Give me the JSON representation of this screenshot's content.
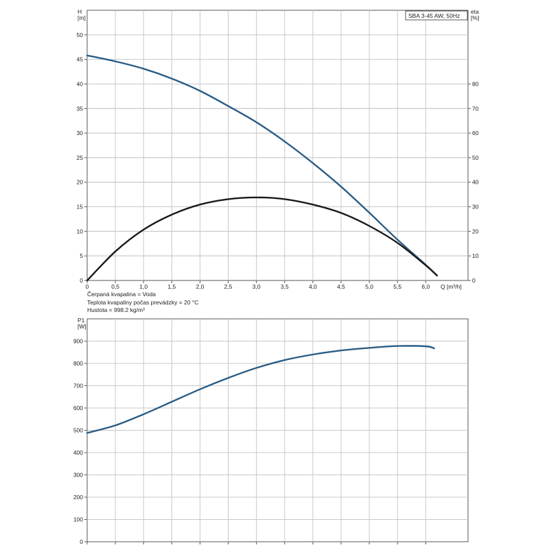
{
  "fluid_info": [
    "Čerpaná kvapalina = Voda",
    "Teplota kvapaliny počas prevádzky = 20 °C",
    "Hustota = 998.2 kg/m³"
  ],
  "chart_data": [
    {
      "type": "line",
      "title": "SBA 3-45 AW, 50Hz",
      "xlabel": "Q [m³/h]",
      "ylabel": "H\n[m]",
      "y2label": "eta\n[%]",
      "xlim": [
        0,
        6.75
      ],
      "xticks": [
        0,
        0.5,
        1.0,
        1.5,
        2.0,
        2.5,
        3.0,
        3.5,
        4.0,
        4.5,
        5.0,
        5.5,
        6.0
      ],
      "xtick_labels": [
        "0",
        "0,5",
        "1,0",
        "1,5",
        "2,0",
        "2,5",
        "3,0",
        "3,5",
        "4,0",
        "4,5",
        "5,0",
        "5,5",
        "6,0"
      ],
      "ylim": [
        0,
        55
      ],
      "yticks": [
        0,
        5,
        10,
        15,
        20,
        25,
        30,
        35,
        40,
        45,
        50
      ],
      "y2lim": [
        0,
        110
      ],
      "y2ticks": [
        0,
        10,
        20,
        30,
        40,
        50,
        60,
        70,
        80
      ],
      "grid": true,
      "series": [
        {
          "axis": "left",
          "color": "#2a5d86",
          "x": [
            0,
            0.5,
            1.0,
            1.5,
            2.0,
            2.5,
            3.0,
            3.5,
            4.0,
            4.5,
            5.0,
            5.5,
            6.0,
            6.2
          ],
          "values": [
            45.8,
            44.6,
            43.1,
            41.1,
            38.6,
            35.5,
            32.2,
            28.3,
            23.9,
            19.1,
            13.8,
            8.3,
            3.2,
            1.0
          ]
        },
        {
          "axis": "right",
          "color": "#1a1a1a",
          "x": [
            0,
            0.5,
            1.0,
            1.5,
            2.0,
            2.5,
            3.0,
            3.5,
            4.0,
            4.5,
            5.0,
            5.5,
            6.0,
            6.2
          ],
          "values": [
            0,
            11.8,
            20.7,
            26.8,
            30.9,
            33.1,
            33.8,
            33.1,
            30.9,
            27.5,
            22.2,
            15.3,
            6.2,
            2.0
          ]
        }
      ]
    },
    {
      "type": "line",
      "title": "",
      "xlabel": "",
      "ylabel": "P1\n[W]",
      "xlim": [
        0,
        6.75
      ],
      "xticks": [
        0,
        0.5,
        1.0,
        1.5,
        2.0,
        2.5,
        3.0,
        3.5,
        4.0,
        4.5,
        5.0,
        5.5,
        6.0
      ],
      "ylim": [
        0,
        1000
      ],
      "yticks": [
        0,
        100,
        200,
        300,
        400,
        500,
        600,
        700,
        800,
        900
      ],
      "grid": true,
      "series": [
        {
          "axis": "left",
          "color": "#2a5d86",
          "x": [
            0,
            0.5,
            1.0,
            1.5,
            2.0,
            2.5,
            3.0,
            3.5,
            4.0,
            4.5,
            5.0,
            5.5,
            6.0,
            6.15
          ],
          "values": [
            488,
            522,
            572,
            628,
            684,
            735,
            780,
            815,
            840,
            858,
            870,
            878,
            877,
            868
          ]
        }
      ]
    }
  ]
}
